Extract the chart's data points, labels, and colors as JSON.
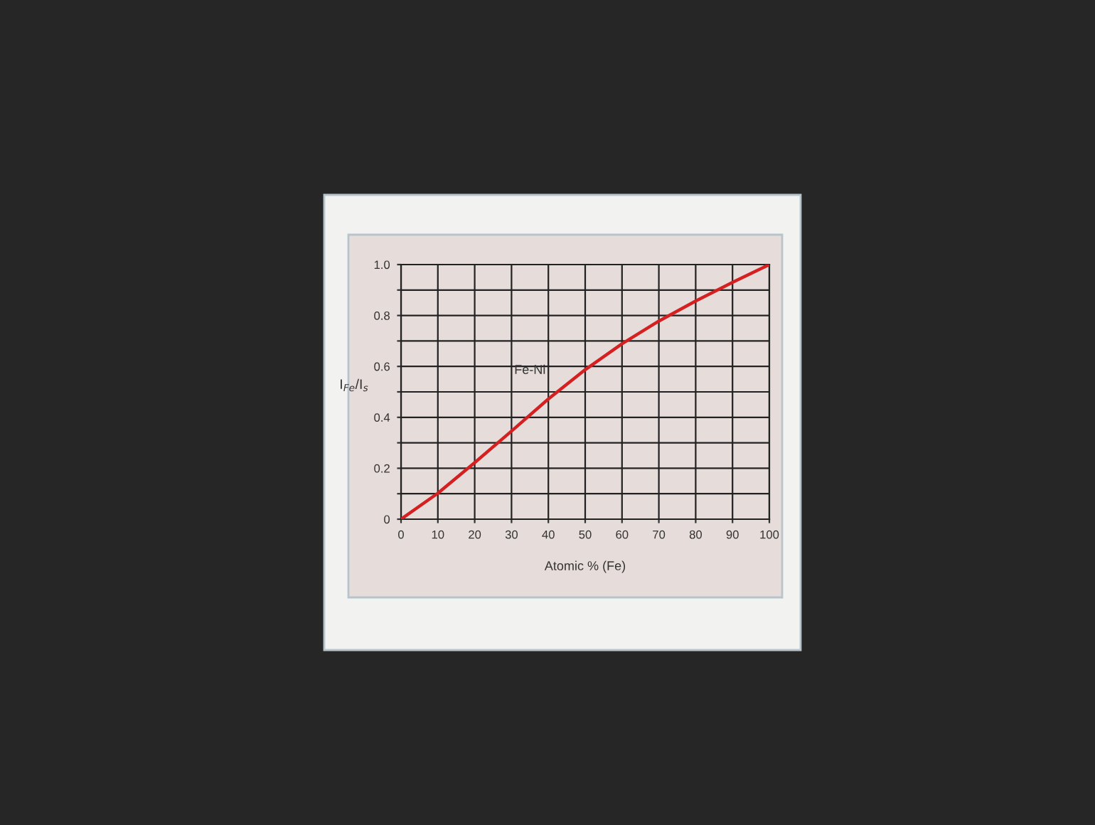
{
  "chart_data": {
    "type": "line",
    "xlabel": "Atomic % (Fe)",
    "ylabel": "I$_{Fe}$/I$_{s}$",
    "x": [
      0,
      10,
      20,
      30,
      40,
      50,
      60,
      70,
      80,
      90,
      100
    ],
    "series": [
      {
        "color": "#d42020",
        "values": [
          0,
          0.102,
          0.222,
          0.346,
          0.472,
          0.587,
          0.689,
          0.778,
          0.857,
          0.93,
          1.0
        ]
      }
    ],
    "xlim": [
      0,
      100
    ],
    "ylim": [
      0,
      1
    ],
    "xticks": [
      0,
      10,
      20,
      30,
      40,
      50,
      60,
      70,
      80,
      90,
      100
    ],
    "yticks": [
      0,
      {
        "value": 0.1,
        "label": null
      },
      0.2,
      {
        "value": 0.3,
        "label": null
      },
      0.4,
      {
        "value": 0.5,
        "label": null
      },
      0.6,
      {
        "value": 0.7,
        "label": null
      },
      0.8,
      {
        "value": 0.9,
        "label": null
      },
      {
        "value": 1.0,
        "label": "1.0"
      }
    ],
    "grid": true,
    "marker": "none",
    "line_style": "solid",
    "annotations": [
      "Fe-Ni"
    ]
  }
}
